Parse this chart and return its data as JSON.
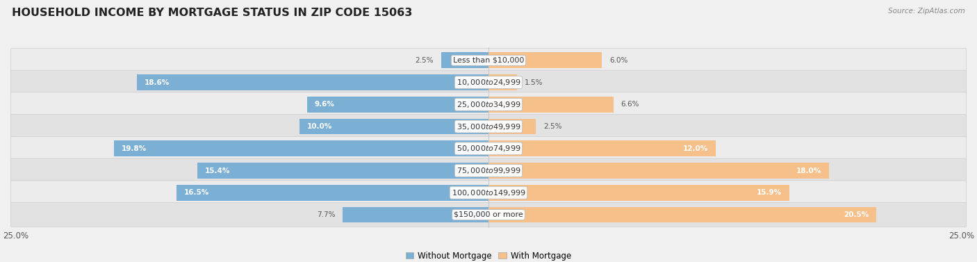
{
  "title": "HOUSEHOLD INCOME BY MORTGAGE STATUS IN ZIP CODE 15063",
  "source": "Source: ZipAtlas.com",
  "categories": [
    "Less than $10,000",
    "$10,000 to $24,999",
    "$25,000 to $34,999",
    "$35,000 to $49,999",
    "$50,000 to $74,999",
    "$75,000 to $99,999",
    "$100,000 to $149,999",
    "$150,000 or more"
  ],
  "without_mortgage": [
    2.5,
    18.6,
    9.6,
    10.0,
    19.8,
    15.4,
    16.5,
    7.7
  ],
  "with_mortgage": [
    6.0,
    1.5,
    6.6,
    2.5,
    12.0,
    18.0,
    15.9,
    20.5
  ],
  "color_without": "#7bafd4",
  "color_with": "#f5c08a",
  "axis_max": 25.0,
  "bg_light": "#ececec",
  "bg_dark": "#e2e2e2",
  "title_fontsize": 11.5,
  "label_fontsize": 8.0,
  "bar_label_fontsize": 7.5,
  "legend_fontsize": 8.5,
  "axis_label_fontsize": 8.5
}
